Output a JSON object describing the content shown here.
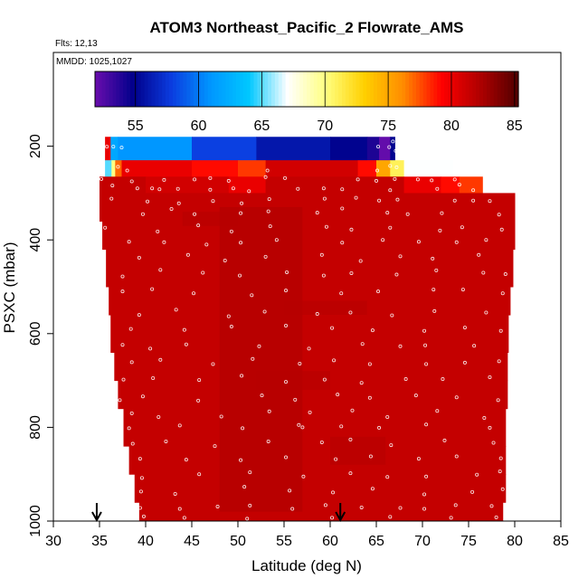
{
  "chart_data": {
    "type": "heatmap",
    "title": "ATOM3 Northeast_Pacific_2 Flowrate_AMS",
    "flights_text": "Flts: 12,13",
    "dates_text": "MMDD: 1025,1027",
    "xlabel": "Latitude (deg N)",
    "ylabel": "PSXC (mbar)",
    "xlim": [
      30,
      85
    ],
    "ylim": [
      1000,
      0
    ],
    "x_ticks": [
      "30",
      "35",
      "40",
      "45",
      "50",
      "55",
      "60",
      "65",
      "70",
      "75",
      "80",
      "85"
    ],
    "y_ticks": [
      "200",
      "400",
      "600",
      "800",
      "1000"
    ],
    "y_tick_values": [
      200,
      400,
      600,
      800,
      1000
    ],
    "colorbar": {
      "range": [
        51.8,
        85.3
      ],
      "ticks": [
        "55",
        "60",
        "65",
        "70",
        "75",
        "80",
        "85"
      ],
      "tick_values": [
        55,
        60,
        65,
        70,
        75,
        80,
        85
      ],
      "stops": [
        "#6a0dad",
        "#00008b",
        "#0b3de0",
        "#0096ff",
        "#00c8ff",
        "#ffffff",
        "#ffff80",
        "#ffd000",
        "#ff8c00",
        "#ff0000",
        "#b00000",
        "#500000"
      ]
    },
    "bands": [
      {
        "p_top": 180,
        "p_bot": 230,
        "segments": [
          [
            35.6,
            36.2,
            80
          ],
          [
            36.2,
            37,
            62
          ],
          [
            37,
            45,
            61
          ],
          [
            45,
            52,
            58
          ],
          [
            52,
            60,
            56
          ],
          [
            60,
            64,
            55
          ],
          [
            64,
            65.3,
            54
          ],
          [
            65.3,
            66.5,
            52
          ],
          [
            66.5,
            67,
            55
          ]
        ]
      },
      {
        "p_top": 230,
        "p_bot": 265,
        "segments": [
          [
            35.6,
            36.3,
            65
          ],
          [
            36.3,
            36.7,
            70
          ],
          [
            36.7,
            37.4,
            77
          ],
          [
            37.4,
            45,
            80
          ],
          [
            45,
            50,
            79
          ],
          [
            50,
            53,
            78
          ],
          [
            53,
            63,
            81
          ],
          [
            63,
            65,
            79
          ],
          [
            65,
            66.5,
            75
          ],
          [
            66.5,
            68,
            71
          ],
          [
            68,
            73.3,
            67
          ]
        ]
      },
      {
        "p_top": 265,
        "p_bot": 300,
        "segments": [
          [
            35,
            40,
            81.5
          ],
          [
            40,
            49,
            81
          ],
          [
            49,
            53,
            80
          ],
          [
            53,
            68,
            81.5
          ],
          [
            68,
            72,
            80
          ],
          [
            72,
            74,
            79
          ],
          [
            74,
            76.5,
            78
          ]
        ]
      },
      {
        "p_top": 300,
        "p_bot": 360,
        "segments": [
          [
            35,
            80,
            81.5
          ]
        ]
      },
      {
        "p_top": 360,
        "p_bot": 420,
        "segments": [
          [
            35.3,
            80,
            81.5
          ]
        ]
      },
      {
        "p_top": 420,
        "p_bot": 500,
        "segments": [
          [
            35.7,
            79.8,
            81.5
          ]
        ]
      },
      {
        "p_top": 500,
        "p_bot": 560,
        "segments": [
          [
            36,
            79.5,
            81.5
          ]
        ]
      },
      {
        "p_top": 560,
        "p_bot": 640,
        "segments": [
          [
            36.2,
            79.3,
            81.5
          ]
        ]
      },
      {
        "p_top": 640,
        "p_bot": 700,
        "segments": [
          [
            36.6,
            79.2,
            81.5
          ]
        ]
      },
      {
        "p_top": 700,
        "p_bot": 760,
        "segments": [
          [
            37,
            79.2,
            81.5
          ]
        ]
      },
      {
        "p_top": 760,
        "p_bot": 840,
        "segments": [
          [
            37.6,
            79,
            81.5
          ]
        ]
      },
      {
        "p_top": 840,
        "p_bot": 900,
        "segments": [
          [
            38.2,
            79,
            81.5
          ]
        ]
      },
      {
        "p_top": 900,
        "p_bot": 960,
        "segments": [
          [
            38.8,
            79,
            81.5
          ]
        ]
      },
      {
        "p_top": 960,
        "p_bot": 1000,
        "segments": [
          [
            39.3,
            78.7,
            81.5
          ]
        ]
      }
    ],
    "shading_patches": [
      {
        "x": [
          48,
          57
        ],
        "p": [
          330,
          980
        ],
        "value": 82.3
      },
      {
        "x": [
          44,
          50
        ],
        "p": [
          340,
          370
        ],
        "value": 82
      },
      {
        "x": [
          52,
          60
        ],
        "p": [
          680,
          720
        ],
        "value": 82
      },
      {
        "x": [
          60,
          66
        ],
        "p": [
          820,
          880
        ],
        "value": 82
      },
      {
        "x": [
          55,
          64
        ],
        "p": [
          530,
          560
        ],
        "value": 82
      }
    ],
    "arrows_at_latitude": [
      34.7,
      61.1
    ],
    "sample_points": [
      [
        35.8,
        201
      ],
      [
        36.5,
        201
      ],
      [
        37.4,
        203
      ],
      [
        65.2,
        201
      ],
      [
        66.4,
        202
      ],
      [
        67.1,
        210
      ],
      [
        66.8,
        190
      ],
      [
        37,
        244
      ],
      [
        38,
        252
      ],
      [
        53.2,
        252
      ],
      [
        65.1,
        252
      ],
      [
        66.5,
        242
      ],
      [
        67.2,
        245
      ],
      [
        68.4,
        245
      ],
      [
        35.2,
        270
      ],
      [
        38.5,
        275
      ],
      [
        42,
        272
      ],
      [
        45.3,
        271
      ],
      [
        47,
        268
      ],
      [
        49,
        274
      ],
      [
        53,
        266
      ],
      [
        55.1,
        268
      ],
      [
        63,
        271
      ],
      [
        65,
        274
      ],
      [
        67,
        270
      ],
      [
        69.5,
        271
      ],
      [
        71,
        273
      ],
      [
        73.5,
        271
      ],
      [
        74,
        282
      ],
      [
        36.4,
        284
      ],
      [
        39.1,
        290
      ],
      [
        40.7,
        290
      ],
      [
        41.5,
        292
      ],
      [
        43.5,
        291
      ],
      [
        47,
        293
      ],
      [
        49.5,
        290
      ],
      [
        51.2,
        296
      ],
      [
        56.5,
        291
      ],
      [
        59.3,
        290
      ],
      [
        61.3,
        292
      ],
      [
        66.5,
        294
      ],
      [
        71.6,
        291
      ],
      [
        75.5,
        294
      ],
      [
        36.3,
        312
      ],
      [
        40.2,
        318
      ],
      [
        43.6,
        322
      ],
      [
        47.3,
        317
      ],
      [
        50.4,
        322
      ],
      [
        53.4,
        313
      ],
      [
        59.4,
        312
      ],
      [
        62.8,
        310
      ],
      [
        65.3,
        316
      ],
      [
        67.3,
        314
      ],
      [
        73.5,
        316
      ],
      [
        75.5,
        316
      ],
      [
        77.3,
        317
      ],
      [
        39.7,
        345
      ],
      [
        42.8,
        334
      ],
      [
        45.3,
        345
      ],
      [
        50.3,
        343
      ],
      [
        53.3,
        339
      ],
      [
        58.6,
        342
      ],
      [
        61.3,
        333
      ],
      [
        66.2,
        342
      ],
      [
        68.4,
        345
      ],
      [
        72.1,
        343
      ],
      [
        78.3,
        346
      ],
      [
        35.6,
        374
      ],
      [
        41.3,
        382
      ],
      [
        45.7,
        369
      ],
      [
        49.3,
        382
      ],
      [
        53.5,
        371
      ],
      [
        59.6,
        372
      ],
      [
        62.3,
        378
      ],
      [
        66.5,
        374
      ],
      [
        71.9,
        380
      ],
      [
        74.3,
        373
      ],
      [
        78.6,
        378
      ],
      [
        38.2,
        404
      ],
      [
        42,
        405
      ],
      [
        46.6,
        410
      ],
      [
        50.3,
        406
      ],
      [
        54.2,
        400
      ],
      [
        61.3,
        406
      ],
      [
        65.7,
        400
      ],
      [
        69.6,
        404
      ],
      [
        73.7,
        405
      ],
      [
        76.9,
        400
      ],
      [
        39.3,
        438
      ],
      [
        44.6,
        432
      ],
      [
        48.6,
        444
      ],
      [
        53,
        436
      ],
      [
        59.1,
        432
      ],
      [
        63.3,
        445
      ],
      [
        67.6,
        435
      ],
      [
        71.1,
        440
      ],
      [
        76.1,
        432
      ],
      [
        37.5,
        478
      ],
      [
        41.6,
        464
      ],
      [
        46.2,
        470
      ],
      [
        50.2,
        476
      ],
      [
        55.3,
        469
      ],
      [
        59.3,
        476
      ],
      [
        62.3,
        471
      ],
      [
        67.2,
        474
      ],
      [
        71.5,
        465
      ],
      [
        76.6,
        470
      ],
      [
        79,
        473
      ],
      [
        37.5,
        510
      ],
      [
        40.7,
        505
      ],
      [
        45.2,
        514
      ],
      [
        51.5,
        518
      ],
      [
        55.2,
        508
      ],
      [
        61.2,
        514
      ],
      [
        65.2,
        510
      ],
      [
        71.2,
        506
      ],
      [
        74.4,
        506
      ],
      [
        78.7,
        514
      ],
      [
        39.3,
        560
      ],
      [
        43.3,
        549
      ],
      [
        49,
        563
      ],
      [
        52.9,
        553
      ],
      [
        58.6,
        558
      ],
      [
        62.2,
        555
      ],
      [
        66.7,
        561
      ],
      [
        71.3,
        552
      ],
      [
        76.9,
        555
      ],
      [
        38.4,
        590
      ],
      [
        44.2,
        592
      ],
      [
        49.3,
        585
      ],
      [
        55.2,
        583
      ],
      [
        60.2,
        588
      ],
      [
        64.6,
        593
      ],
      [
        70.2,
        594
      ],
      [
        74.6,
        587
      ],
      [
        78.5,
        594
      ],
      [
        37.5,
        624
      ],
      [
        40.5,
        632
      ],
      [
        44.4,
        623
      ],
      [
        52.3,
        627
      ],
      [
        57.7,
        632
      ],
      [
        63.5,
        622
      ],
      [
        67.6,
        627
      ],
      [
        70.3,
        625
      ],
      [
        75.6,
        626
      ],
      [
        38.5,
        661
      ],
      [
        41.6,
        656
      ],
      [
        47.3,
        665
      ],
      [
        51.6,
        654
      ],
      [
        56.7,
        664
      ],
      [
        60.4,
        657
      ],
      [
        64.3,
        665
      ],
      [
        70.4,
        665
      ],
      [
        74.6,
        662
      ],
      [
        78.3,
        659
      ],
      [
        37.6,
        698
      ],
      [
        40.8,
        695
      ],
      [
        45.8,
        699
      ],
      [
        50.4,
        690
      ],
      [
        55.2,
        703
      ],
      [
        59.4,
        698
      ],
      [
        63.4,
        705
      ],
      [
        68.2,
        697
      ],
      [
        72.2,
        697
      ],
      [
        77.3,
        693
      ],
      [
        37.2,
        742
      ],
      [
        39.7,
        734
      ],
      [
        45.7,
        743
      ],
      [
        52.6,
        732
      ],
      [
        56.2,
        741
      ],
      [
        60.8,
        730
      ],
      [
        64.3,
        737
      ],
      [
        69.3,
        732
      ],
      [
        73.7,
        736
      ],
      [
        78.2,
        742
      ],
      [
        38.5,
        770
      ],
      [
        41.4,
        778
      ],
      [
        48.2,
        777
      ],
      [
        53.4,
        766
      ],
      [
        57.8,
        768
      ],
      [
        62.4,
        764
      ],
      [
        66.2,
        778
      ],
      [
        71.6,
        765
      ],
      [
        76.7,
        780
      ],
      [
        38.2,
        802
      ],
      [
        43.7,
        796
      ],
      [
        50.5,
        802
      ],
      [
        56.6,
        795
      ],
      [
        57,
        800
      ],
      [
        61.2,
        798
      ],
      [
        65.3,
        801
      ],
      [
        70.4,
        794
      ],
      [
        77.3,
        801
      ],
      [
        38.6,
        835
      ],
      [
        42.2,
        830
      ],
      [
        47.5,
        840
      ],
      [
        53.3,
        830
      ],
      [
        59.1,
        832
      ],
      [
        62.2,
        826
      ],
      [
        66.6,
        838
      ],
      [
        72.4,
        828
      ],
      [
        77.7,
        833
      ],
      [
        39.4,
        867
      ],
      [
        44.4,
        869
      ],
      [
        50.3,
        870
      ],
      [
        55.2,
        864
      ],
      [
        60.6,
        868
      ],
      [
        64.4,
        862
      ],
      [
        69.6,
        867
      ],
      [
        73.7,
        862
      ],
      [
        78.5,
        866
      ],
      [
        39.6,
        908
      ],
      [
        45.8,
        900
      ],
      [
        51.3,
        896
      ],
      [
        57.1,
        905
      ],
      [
        62.2,
        898
      ],
      [
        66.2,
        906
      ],
      [
        70.4,
        905
      ],
      [
        75.9,
        901
      ],
      [
        78.4,
        894
      ],
      [
        39.5,
        937
      ],
      [
        43.2,
        942
      ],
      [
        50.7,
        927
      ],
      [
        55.6,
        935
      ],
      [
        60.3,
        939
      ],
      [
        64.6,
        931
      ],
      [
        70.2,
        943
      ],
      [
        75.4,
        938
      ],
      [
        78.7,
        932
      ],
      [
        39.4,
        972
      ],
      [
        43.7,
        974
      ],
      [
        47.8,
        969
      ],
      [
        51.3,
        967
      ],
      [
        55.9,
        974
      ],
      [
        59.5,
        966
      ],
      [
        63.4,
        971
      ],
      [
        67.6,
        972
      ],
      [
        70.2,
        974
      ],
      [
        73.6,
        966
      ],
      [
        77.5,
        968
      ],
      [
        39.8,
        990
      ],
      [
        44.2,
        993
      ],
      [
        51,
        995
      ],
      [
        60.2,
        993
      ],
      [
        66.5,
        991
      ],
      [
        73.1,
        993
      ],
      [
        78,
        992
      ]
    ]
  }
}
